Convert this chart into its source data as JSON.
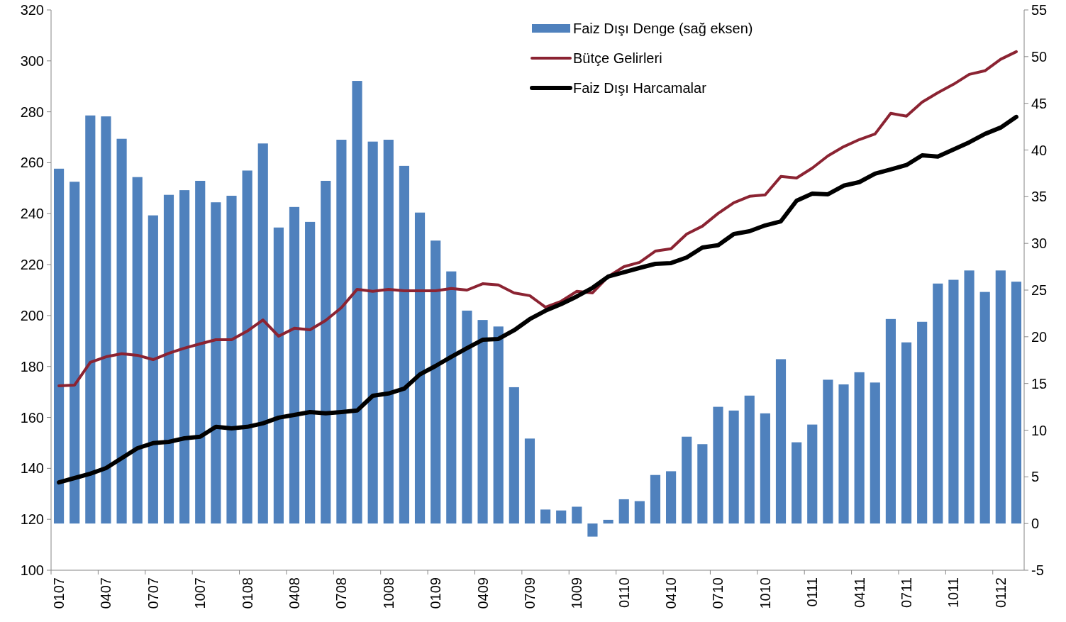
{
  "chart_data": {
    "type": "bar",
    "categories": [
      "0107",
      null,
      null,
      "0407",
      null,
      null,
      "0707",
      null,
      null,
      "1007",
      null,
      null,
      "0108",
      null,
      null,
      "0408",
      null,
      null,
      "0708",
      null,
      null,
      "1008",
      null,
      null,
      "0109",
      null,
      null,
      "0409",
      null,
      null,
      "0709",
      null,
      null,
      "1009",
      null,
      null,
      "0110",
      null,
      null,
      "0410",
      null,
      null,
      "0710",
      null,
      null,
      "1010",
      null,
      null,
      "0111",
      null,
      null,
      "0411",
      null,
      null,
      "0711",
      null,
      null,
      "1011",
      null,
      null,
      "0112",
      null
    ],
    "series": [
      {
        "name": "Faiz Dışı Denge (sağ eksen)",
        "axis": "y2",
        "color": "#4f81bd",
        "values": [
          38.0,
          36.6,
          43.7,
          43.6,
          41.2,
          37.1,
          33.0,
          35.2,
          35.7,
          36.7,
          34.4,
          35.1,
          37.8,
          40.7,
          31.7,
          33.9,
          32.3,
          36.7,
          41.1,
          47.4,
          40.9,
          41.1,
          38.3,
          33.3,
          30.3,
          27.0,
          22.8,
          21.8,
          21.1,
          14.6,
          9.1,
          1.5,
          1.4,
          1.8,
          -1.4,
          0.4,
          2.6,
          2.4,
          5.2,
          5.6,
          9.3,
          8.5,
          12.5,
          12.1,
          13.7,
          11.8,
          17.6,
          8.7,
          10.6,
          15.4,
          14.9,
          16.2,
          15.1,
          21.9,
          19.4,
          21.6,
          25.7,
          26.1,
          27.1,
          24.8,
          27.1,
          25.9
        ]
      },
      {
        "name": "Bütçe Gelirleri",
        "type": "line",
        "color": "#8b2332",
        "values": [
          172.4,
          172.7,
          181.6,
          183.8,
          185.0,
          184.4,
          182.7,
          185.2,
          187.2,
          188.9,
          190.5,
          190.5,
          193.9,
          198.3,
          191.9,
          195.0,
          194.4,
          198.1,
          203.1,
          210.3,
          209.5,
          210.3,
          209.7,
          209.7,
          209.7,
          210.6,
          210.0,
          212.5,
          212.0,
          208.9,
          207.8,
          203.3,
          205.6,
          209.5,
          208.9,
          215.3,
          219.2,
          220.9,
          225.3,
          226.2,
          232.0,
          235.1,
          240.1,
          244.3,
          246.8,
          247.4,
          254.6,
          254.0,
          257.9,
          262.7,
          266.3,
          269.1,
          271.3,
          279.4,
          278.3,
          283.8,
          287.5,
          290.8,
          294.7,
          296.1,
          300.6,
          303.6
        ]
      },
      {
        "name": "Faiz Dışı Harcamalar",
        "type": "line",
        "color": "#000000",
        "values": [
          134.5,
          136.2,
          137.9,
          140.1,
          144.0,
          147.9,
          149.9,
          150.4,
          151.8,
          152.4,
          156.3,
          155.7,
          156.3,
          157.7,
          159.9,
          161.0,
          162.1,
          161.6,
          162.1,
          162.7,
          168.5,
          169.4,
          171.3,
          176.9,
          180.2,
          183.8,
          187.2,
          190.5,
          190.8,
          194.2,
          198.6,
          201.9,
          204.5,
          207.5,
          210.9,
          215.3,
          217.0,
          218.7,
          220.3,
          220.6,
          222.8,
          226.7,
          227.6,
          232.0,
          233.1,
          235.4,
          237.0,
          245.1,
          247.9,
          247.6,
          251.0,
          252.4,
          255.7,
          257.4,
          259.1,
          262.9,
          262.4,
          265.2,
          268.0,
          271.3,
          273.8,
          278.0
        ]
      }
    ],
    "ylim": [
      100,
      320
    ],
    "yticks": [
      100,
      120,
      140,
      160,
      180,
      200,
      220,
      240,
      260,
      280,
      300,
      320
    ],
    "y2lim": [
      -5,
      55
    ],
    "y2ticks": [
      -5,
      0,
      5,
      10,
      15,
      20,
      25,
      30,
      35,
      40,
      45,
      50,
      55
    ],
    "legend": "top right",
    "grid": false
  }
}
